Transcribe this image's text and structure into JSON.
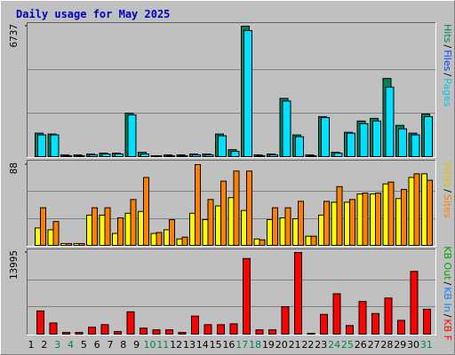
{
  "title": "Daily usage for May 2025",
  "chart_data": [
    {
      "type": "bar",
      "ylim": [
        0,
        6737
      ],
      "yticks": [
        6737
      ],
      "legend": [
        "Hits",
        "Files",
        "Pages"
      ],
      "legend_colors": [
        "#00805c",
        "#0040ff",
        "#00c8e0"
      ],
      "legend_separator": "/",
      "series": [
        {
          "color": "#00805c",
          "values": [
            1212,
            1167,
            90,
            90,
            135,
            180,
            180,
            2245,
            225,
            45,
            90,
            90,
            135,
            135,
            1167,
            360,
            6737,
            90,
            135,
            3008,
            1120,
            90,
            2065,
            225,
            1257,
            1840,
            1975,
            4040,
            1616,
            1212,
            2200
          ]
        },
        {
          "color": "#00e0ff",
          "values": [
            1122,
            1122,
            45,
            45,
            90,
            135,
            135,
            2155,
            135,
            45,
            45,
            45,
            90,
            90,
            1077,
            270,
            6510,
            45,
            90,
            2870,
            1030,
            45,
            2020,
            180,
            1212,
            1700,
            1840,
            3590,
            1437,
            1122,
            2065
          ]
        }
      ]
    },
    {
      "type": "bar",
      "ylim": [
        0,
        88
      ],
      "yticks": [
        88
      ],
      "legend": [
        "Visits",
        "Sites"
      ],
      "legend_colors": [
        "#e0c000",
        "#ff8000"
      ],
      "legend_separator": "/",
      "series": [
        {
          "color": "#ffff00",
          "values": [
            19,
            17,
            2,
            2,
            33,
            33,
            13,
            35,
            37,
            13,
            17,
            7,
            35,
            28,
            43,
            52,
            38,
            7,
            28,
            30,
            29,
            10,
            33,
            47,
            47,
            56,
            56,
            67,
            51,
            74,
            78
          ]
        },
        {
          "color": "#ff8000",
          "values": [
            41,
            26,
            2,
            2,
            41,
            41,
            30,
            50,
            74,
            14,
            28,
            9,
            88,
            50,
            70,
            81,
            81,
            6,
            41,
            41,
            48,
            10,
            48,
            64,
            50,
            57,
            57,
            69,
            61,
            78,
            71
          ]
        }
      ]
    },
    {
      "type": "bar",
      "ylim": [
        0,
        13995
      ],
      "yticks": [
        13995
      ],
      "legend": [
        "KB Out",
        "KB In",
        "KB F"
      ],
      "legend_colors": [
        "#00a000",
        "#0080ff",
        "#ff0000"
      ],
      "legend_separator": "/",
      "categories": [
        "1",
        "2",
        "3",
        "4",
        "5",
        "6",
        "7",
        "8",
        "9",
        "10",
        "11",
        "12",
        "13",
        "14",
        "15",
        "16",
        "17",
        "18",
        "19",
        "20",
        "21",
        "22",
        "23",
        "24",
        "25",
        "26",
        "27",
        "28",
        "29",
        "30",
        "31"
      ],
      "category_colors": [
        "#000000",
        "#000000",
        "#00805c",
        "#00805c",
        "#000000",
        "#000000",
        "#000000",
        "#000000",
        "#000000",
        "#00805c",
        "#00805c",
        "#000000",
        "#000000",
        "#000000",
        "#000000",
        "#000000",
        "#00805c",
        "#00805c",
        "#000000",
        "#000000",
        "#000000",
        "#000000",
        "#000000",
        "#00805c",
        "#00805c",
        "#000000",
        "#000000",
        "#000000",
        "#000000",
        "#000000",
        "#00805c"
      ],
      "series": [
        {
          "color": "#ff0000",
          "values": [
            3977,
            1915,
            295,
            300,
            1180,
            1620,
            440,
            3830,
            1030,
            737,
            737,
            295,
            3094,
            1620,
            1620,
            1768,
            12964,
            737,
            737,
            4714,
            13995,
            147,
            3388,
            6924,
            1473,
            5598,
            3536,
            6187,
            2357,
            10754,
            4272
          ]
        }
      ]
    }
  ]
}
